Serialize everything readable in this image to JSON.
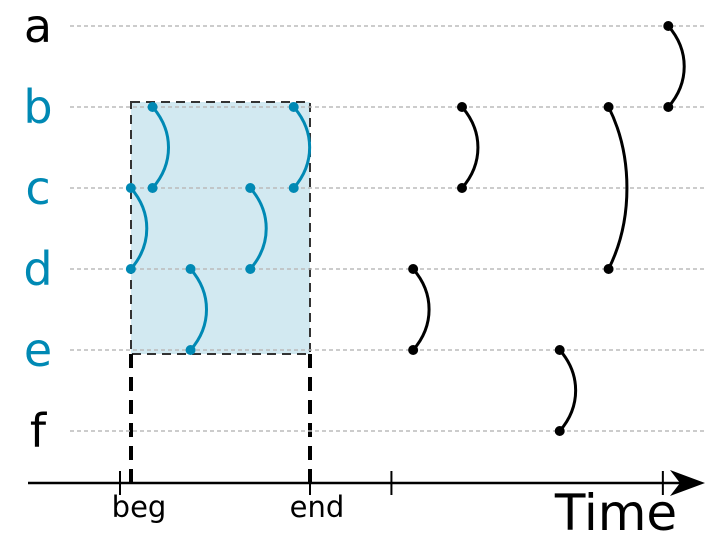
{
  "colors": {
    "highlight": "#0089b4",
    "window_fill": "#d2e9f1",
    "window_border": "#333333",
    "gridline": "#bbbbbb",
    "default": "#000000"
  },
  "nodes": [
    {
      "id": "a",
      "label": "a",
      "highlighted": false
    },
    {
      "id": "b",
      "label": "b",
      "highlighted": true
    },
    {
      "id": "c",
      "label": "c",
      "highlighted": true
    },
    {
      "id": "d",
      "label": "d",
      "highlighted": true
    },
    {
      "id": "e",
      "label": "e",
      "highlighted": true
    },
    {
      "id": "f",
      "label": "f",
      "highlighted": false
    }
  ],
  "axis": {
    "label": "Time",
    "ticks": [
      {
        "label": "beg",
        "t": 1.0
      },
      {
        "label": "end",
        "t": 4.5
      },
      {
        "label": "",
        "t": 6.0
      },
      {
        "label": "",
        "t": 11.0
      }
    ]
  },
  "window": {
    "start": 1.0,
    "end": 4.5
  },
  "edges": [
    {
      "from": "b",
      "to": "c",
      "t1": 1.6,
      "t2": 1.6,
      "highlighted": true
    },
    {
      "from": "c",
      "to": "d",
      "t1": 1.2,
      "t2": 1.2,
      "highlighted": true
    },
    {
      "from": "d",
      "to": "e",
      "t1": 2.3,
      "t2": 2.3,
      "highlighted": true
    },
    {
      "from": "c",
      "to": "d",
      "t1": 3.4,
      "t2": 3.4,
      "highlighted": true
    },
    {
      "from": "b",
      "to": "c",
      "t1": 4.2,
      "t2": 4.2,
      "highlighted": true
    },
    {
      "from": "d",
      "to": "e",
      "t1": 6.4,
      "t2": 6.4,
      "highlighted": false
    },
    {
      "from": "b",
      "to": "c",
      "t1": 7.3,
      "t2": 7.3,
      "highlighted": false
    },
    {
      "from": "e",
      "to": "f",
      "t1": 9.1,
      "t2": 9.1,
      "highlighted": false
    },
    {
      "from": "b",
      "to": "d",
      "t1": 10.0,
      "t2": 10.0,
      "highlighted": false
    },
    {
      "from": "a",
      "to": "b",
      "t1": 11.1,
      "t2": 11.1,
      "highlighted": false
    }
  ]
}
